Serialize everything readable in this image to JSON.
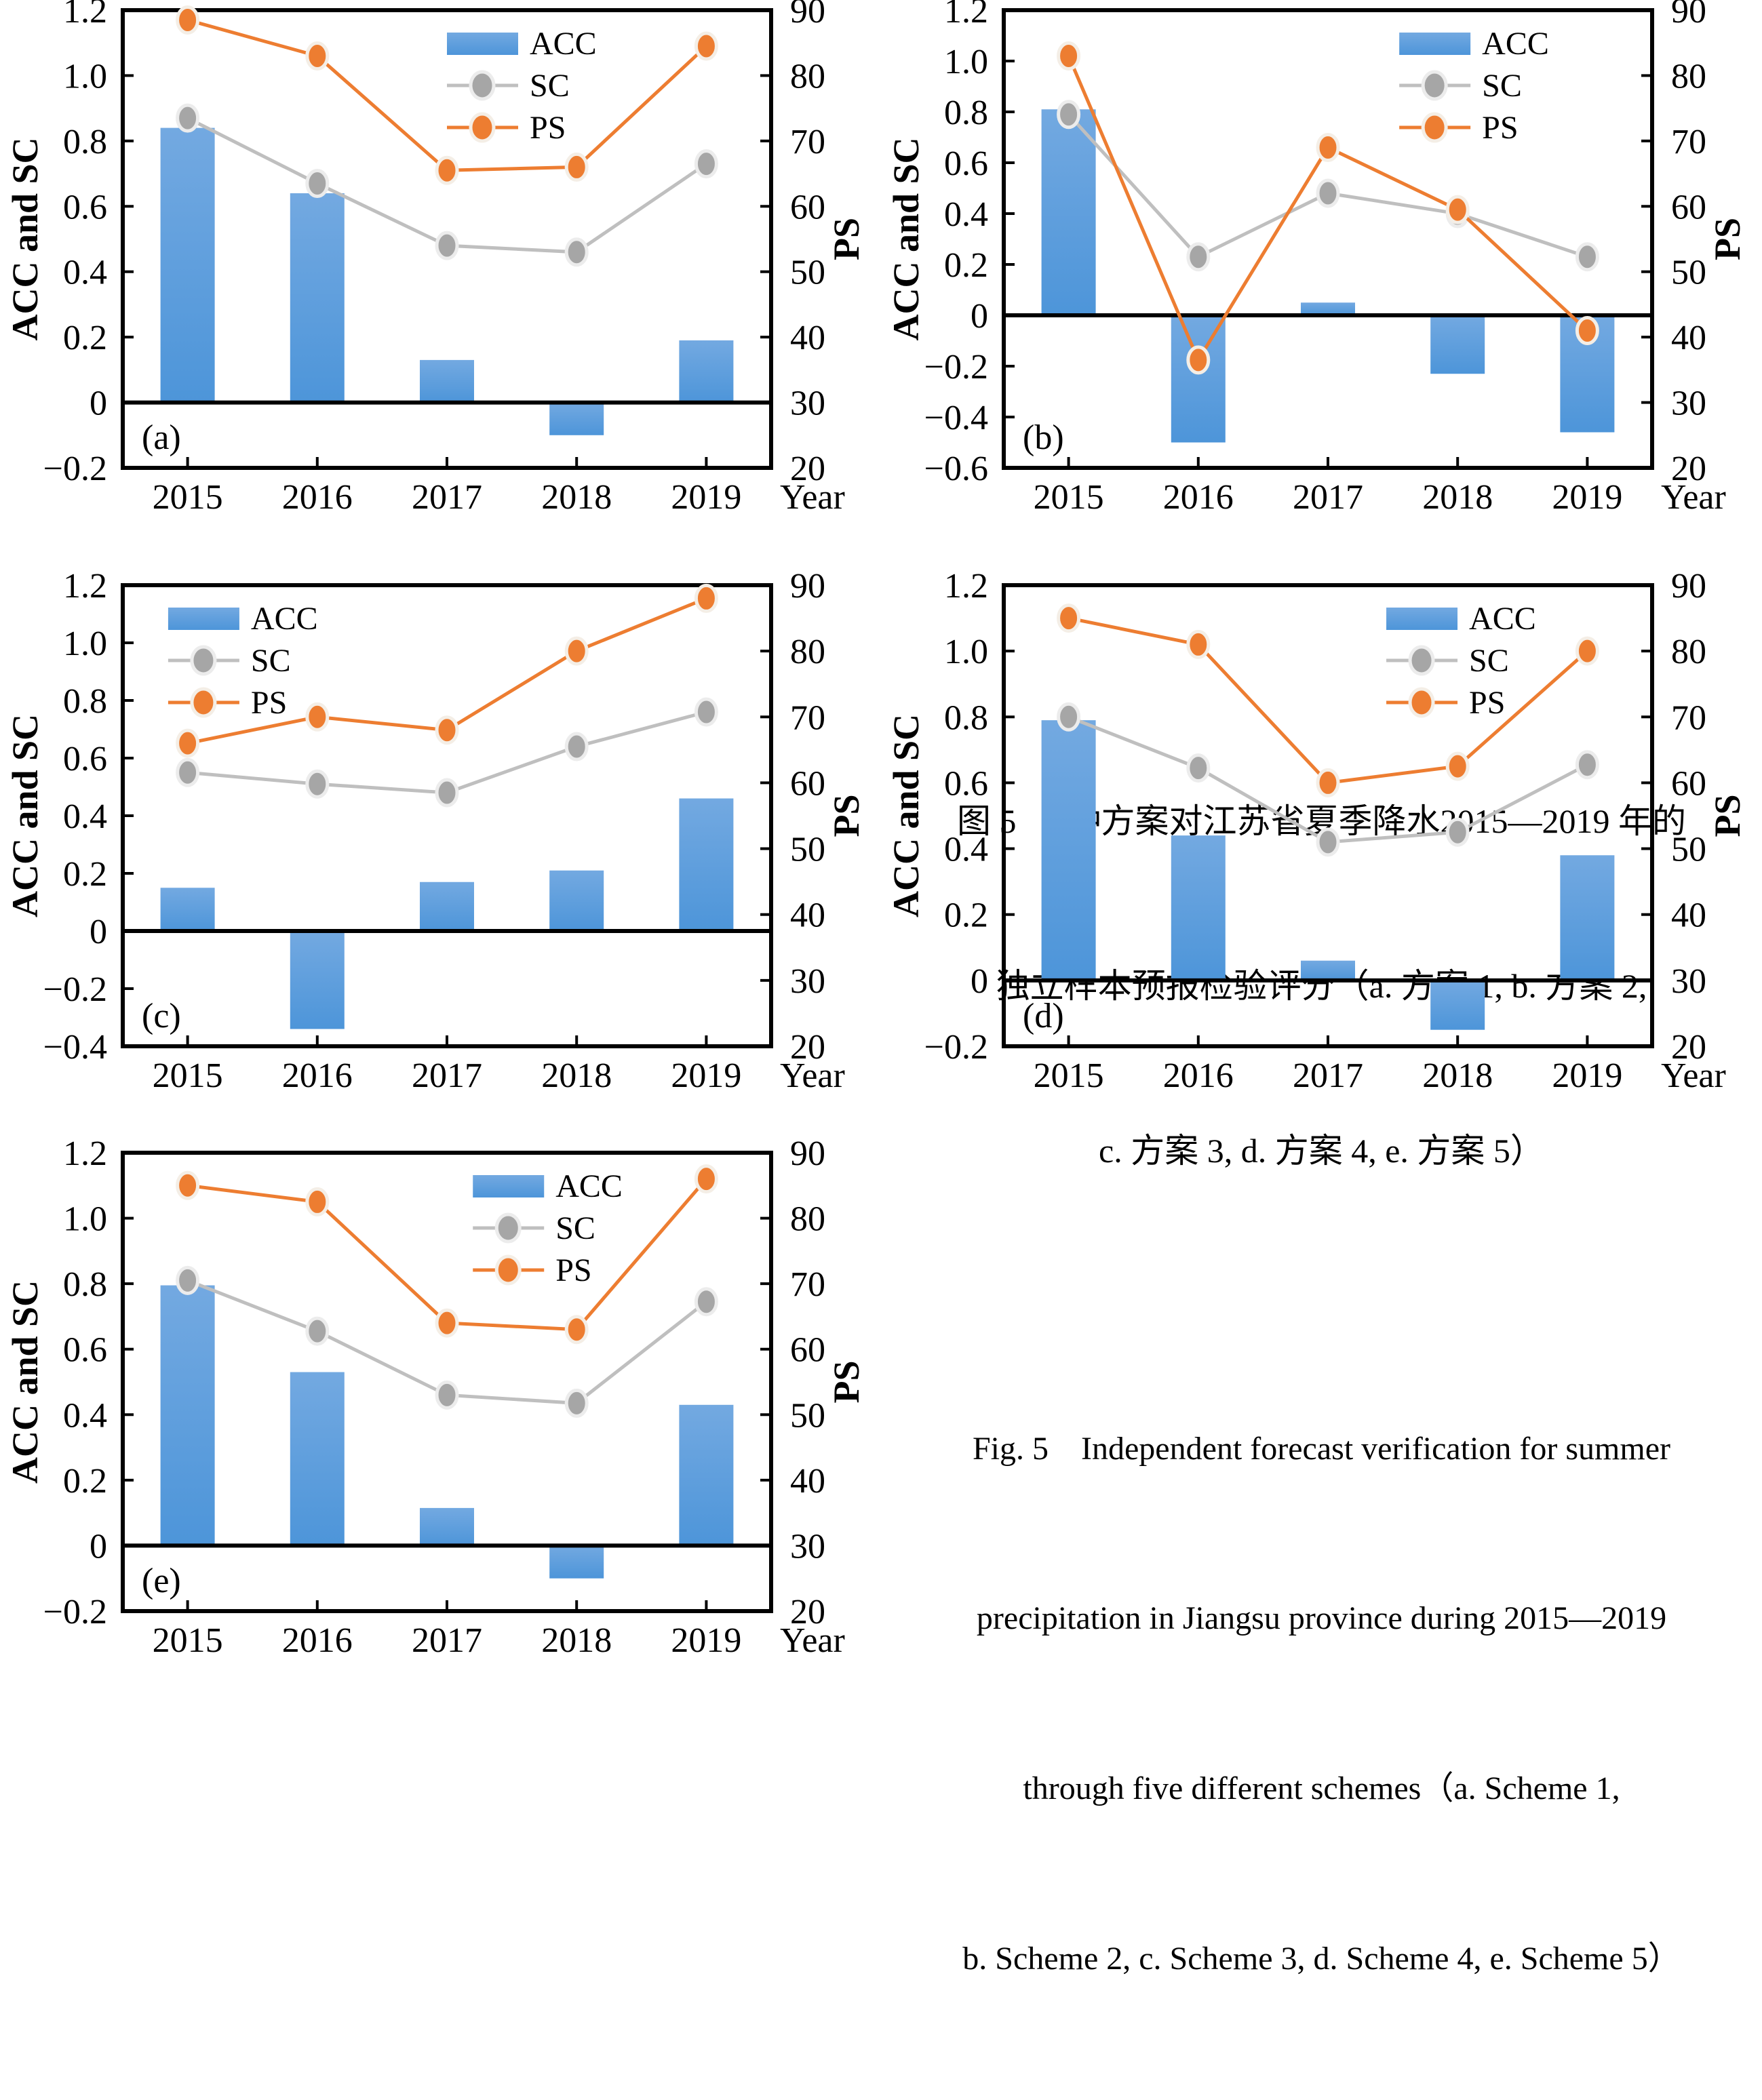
{
  "axes": {
    "left_label": "ACC and SC",
    "right_label": "PS",
    "x_label": "Year"
  },
  "legend": {
    "acc": "ACC",
    "sc": "SC",
    "ps": "PS"
  },
  "colors": {
    "bar_top": "#73A9E1",
    "bar_bottom": "#4D95D9",
    "sc_line": "#BFBFBF",
    "sc_marker": "#A6A6A6",
    "sc_marker_ring": "#ECECEC",
    "ps_line": "#ED7D31",
    "ps_marker": "#ED7D31",
    "ps_marker_ring": "#F4EEE6",
    "axis": "#000000"
  },
  "chart_data": [
    {
      "panel": "(a)",
      "type": "bar+line",
      "categories": [
        "2015",
        "2016",
        "2017",
        "2018",
        "2019"
      ],
      "left_axis": {
        "min": -0.2,
        "max": 1.2,
        "step": 0.2
      },
      "right_axis": {
        "min": 20,
        "max": 90,
        "step": 10
      },
      "series": [
        {
          "name": "ACC",
          "type": "bar",
          "axis": "left",
          "values": [
            0.84,
            0.64,
            0.13,
            -0.1,
            0.19
          ]
        },
        {
          "name": "SC",
          "type": "line",
          "axis": "left",
          "values": [
            0.87,
            0.67,
            0.48,
            0.46,
            0.73
          ]
        },
        {
          "name": "PS",
          "type": "line",
          "axis": "right",
          "values": [
            88.5,
            83,
            65.5,
            66,
            84.5
          ]
        }
      ],
      "legend_x_frac": 0.5
    },
    {
      "panel": "(b)",
      "type": "bar+line",
      "categories": [
        "2015",
        "2016",
        "2017",
        "2018",
        "2019"
      ],
      "left_axis": {
        "min": -0.6,
        "max": 1.2,
        "step": 0.2
      },
      "right_axis": {
        "min": 20,
        "max": 90,
        "step": 10
      },
      "series": [
        {
          "name": "ACC",
          "type": "bar",
          "axis": "left",
          "values": [
            0.81,
            -0.5,
            0.05,
            -0.23,
            -0.46
          ]
        },
        {
          "name": "SC",
          "type": "line",
          "axis": "left",
          "values": [
            0.79,
            0.23,
            0.48,
            0.4,
            0.23
          ]
        },
        {
          "name": "PS",
          "type": "line",
          "axis": "right",
          "values": [
            83,
            36.5,
            69,
            59.5,
            41
          ]
        }
      ],
      "legend_x_frac": 0.61
    },
    {
      "panel": "(c)",
      "type": "bar+line",
      "categories": [
        "2015",
        "2016",
        "2017",
        "2018",
        "2019"
      ],
      "left_axis": {
        "min": -0.4,
        "max": 1.2,
        "step": 0.2
      },
      "right_axis": {
        "min": 20,
        "max": 90,
        "step": 10
      },
      "series": [
        {
          "name": "ACC",
          "type": "bar",
          "axis": "left",
          "values": [
            0.15,
            -0.34,
            0.17,
            0.21,
            0.46
          ]
        },
        {
          "name": "SC",
          "type": "line",
          "axis": "left",
          "values": [
            0.55,
            0.51,
            0.48,
            0.64,
            0.76
          ]
        },
        {
          "name": "PS",
          "type": "line",
          "axis": "right",
          "values": [
            66,
            70,
            68,
            80,
            88
          ]
        }
      ],
      "legend_x_frac": 0.07
    },
    {
      "panel": "(d)",
      "type": "bar+line",
      "categories": [
        "2015",
        "2016",
        "2017",
        "2018",
        "2019"
      ],
      "left_axis": {
        "min": -0.2,
        "max": 1.2,
        "step": 0.2
      },
      "right_axis": {
        "min": 20,
        "max": 90,
        "step": 10
      },
      "series": [
        {
          "name": "ACC",
          "type": "bar",
          "axis": "left",
          "values": [
            0.79,
            0.44,
            0.06,
            -0.15,
            0.38
          ]
        },
        {
          "name": "SC",
          "type": "line",
          "axis": "left",
          "values": [
            0.8,
            0.645,
            0.42,
            0.45,
            0.655
          ]
        },
        {
          "name": "PS",
          "type": "line",
          "axis": "right",
          "values": [
            85,
            81,
            60,
            62.5,
            80
          ]
        }
      ],
      "legend_x_frac": 0.59
    },
    {
      "panel": "(e)",
      "type": "bar+line",
      "categories": [
        "2015",
        "2016",
        "2017",
        "2018",
        "2019"
      ],
      "left_axis": {
        "min": -0.2,
        "max": 1.2,
        "step": 0.2
      },
      "right_axis": {
        "min": 20,
        "max": 90,
        "step": 10
      },
      "series": [
        {
          "name": "ACC",
          "type": "bar",
          "axis": "left",
          "values": [
            0.795,
            0.53,
            0.115,
            -0.1,
            0.43
          ]
        },
        {
          "name": "SC",
          "type": "line",
          "axis": "left",
          "values": [
            0.81,
            0.655,
            0.46,
            0.435,
            0.745
          ]
        },
        {
          "name": "PS",
          "type": "line",
          "axis": "right",
          "values": [
            85,
            82.5,
            64,
            63,
            86
          ]
        }
      ],
      "legend_x_frac": 0.54
    }
  ],
  "caption": {
    "zh_lines": [
      "图 5　5种方案对江苏省夏季降水2015—2019 年的",
      "独立样本预报检验评分（a. 方案 1, b. 方案 2,",
      "c. 方案 3, d. 方案 4, e. 方案 5）"
    ],
    "en_lines": [
      "Fig. 5　Independent forecast verification for summer",
      "precipitation in Jiangsu province during 2015—2019",
      "through five different schemes（a. Scheme 1,",
      "b. Scheme 2, c. Scheme 3, d. Scheme 4, e. Scheme 5）"
    ]
  }
}
